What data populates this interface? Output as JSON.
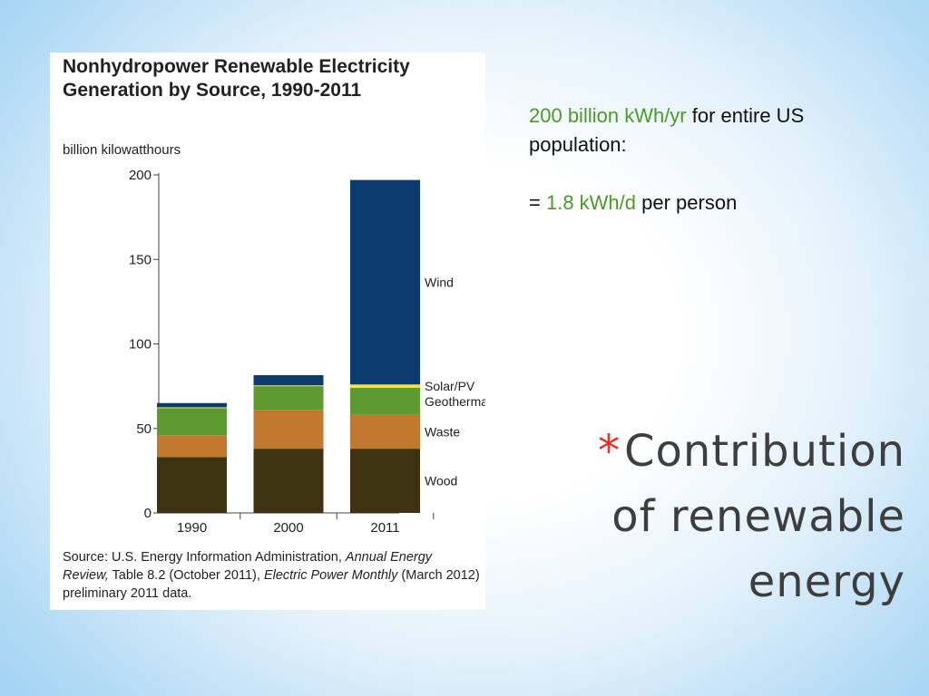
{
  "chart_data": {
    "type": "bar",
    "stacked": true,
    "title": "Nonhydropower Renewable Electricity Generation by Source, 1990-2011",
    "ylabel": "billion kilowatthours",
    "ylim": [
      0,
      200
    ],
    "yticks": [
      0,
      50,
      100,
      150,
      200
    ],
    "categories": [
      "1990",
      "2000",
      "2011"
    ],
    "series": [
      {
        "name": "Wood",
        "color": "#3e3310",
        "values": [
          33,
          38,
          38
        ]
      },
      {
        "name": "Waste",
        "color": "#c2782e",
        "values": [
          13,
          23,
          20
        ]
      },
      {
        "name": "Geothermal",
        "color": "#5e9a30",
        "values": [
          16,
          14,
          16
        ]
      },
      {
        "name": "Solar/PV",
        "color": "#f2e34a",
        "values": [
          0.5,
          0.5,
          2
        ]
      },
      {
        "name": "Wind",
        "color": "#0b3a6e",
        "values": [
          2.5,
          6,
          121
        ]
      }
    ],
    "legend_placement": "right of last bar",
    "source": {
      "prefix": "Source: U.S. Energy Information Administration, ",
      "italic1": "Annual Energy Review,",
      "mid": " Table 8.2 (October 2011), ",
      "italic2": "Electric Power Monthly",
      "suffix": " (March 2012) preliminary 2011 data."
    }
  },
  "info": {
    "line1_value": "200 billion kWh/yr",
    "line1_rest": " for entire US population:",
    "line2_prefix": "= ",
    "line2_value": "1.8 kWh/d",
    "line2_rest": " per person"
  },
  "slide": {
    "bullet": "*",
    "title_lines": [
      "Contribution",
      "of renewable",
      "energy"
    ]
  },
  "colors": {
    "accent_green": "#4a9a25",
    "bullet_red": "#e0312a",
    "title_gray": "#3e3e3e"
  }
}
